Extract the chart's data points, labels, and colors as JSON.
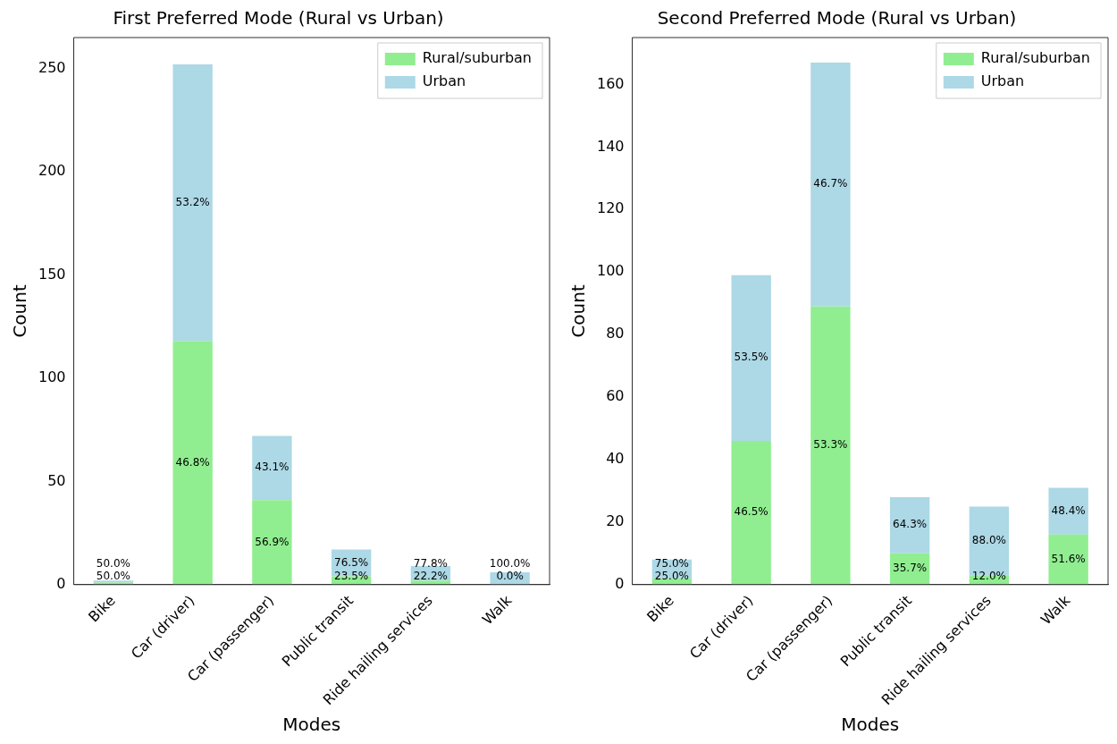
{
  "chart_data": [
    {
      "type": "bar",
      "title": "First Preferred Mode (Rural vs Urban)",
      "xlabel": "Modes",
      "ylabel": "Count",
      "categories": [
        "Bike",
        "Car (driver)",
        "Car (passenger)",
        "Public transit",
        "Ride hailing services",
        "Walk"
      ],
      "stacked": true,
      "legend": "top right",
      "grid": false,
      "ylim": [
        0,
        265
      ],
      "yticks": [
        0,
        50,
        100,
        150,
        200,
        250
      ],
      "series": [
        {
          "name": "Rural/suburban",
          "color": "#90ee90",
          "values": [
            1,
            118,
            41,
            4,
            2,
            0
          ]
        },
        {
          "name": "Urban",
          "color": "#add8e6",
          "values": [
            1,
            134,
            31,
            13,
            7,
            6
          ]
        }
      ],
      "annotations": [
        "50.0%",
        "46.8%",
        "56.9%",
        "23.5%",
        "22.2%",
        "0.0%",
        "50.0%",
        "53.2%",
        "43.1%",
        "76.5%",
        "77.8%",
        "100.0%"
      ]
    },
    {
      "type": "bar",
      "title": "Second Preferred Mode (Rural vs Urban)",
      "xlabel": "Modes",
      "ylabel": "Count",
      "categories": [
        "Bike",
        "Car (driver)",
        "Car (passenger)",
        "Public transit",
        "Ride hailing services",
        "Walk"
      ],
      "stacked": true,
      "legend": "top right",
      "grid": false,
      "ylim": [
        0,
        175
      ],
      "yticks": [
        0,
        20,
        40,
        60,
        80,
        100,
        120,
        140,
        160
      ],
      "series": [
        {
          "name": "Rural/suburban",
          "color": "#90ee90",
          "values": [
            2,
            46,
            89,
            10,
            3,
            16
          ]
        },
        {
          "name": "Urban",
          "color": "#add8e6",
          "values": [
            6,
            53,
            78,
            18,
            22,
            15
          ]
        }
      ],
      "annotations": [
        "25.0%",
        "46.5%",
        "53.3%",
        "35.7%",
        "12.0%",
        "51.6%",
        "75.0%",
        "53.5%",
        "46.7%",
        "64.3%",
        "88.0%",
        "48.4%"
      ]
    }
  ]
}
